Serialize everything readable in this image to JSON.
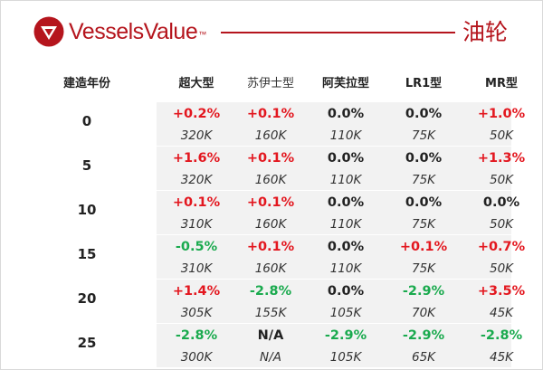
{
  "header": {
    "brand": "VesselsValue",
    "trademark": "™",
    "title": "油轮"
  },
  "table": {
    "age_header": "建造年份",
    "columns": [
      "超大型",
      "苏伊士型",
      "阿芙拉型",
      "LR1型",
      "MR型"
    ],
    "rows": [
      {
        "age": "0",
        "changes": [
          "+0.2%",
          "+0.1%",
          "0.0%",
          "0.0%",
          "+1.0%"
        ],
        "values": [
          "320K",
          "160K",
          "110K",
          "75K",
          "50K"
        ]
      },
      {
        "age": "5",
        "changes": [
          "+1.6%",
          "+0.1%",
          "0.0%",
          "0.0%",
          "+1.3%"
        ],
        "values": [
          "320K",
          "160K",
          "110K",
          "75K",
          "50K"
        ]
      },
      {
        "age": "10",
        "changes": [
          "+0.1%",
          "+0.1%",
          "0.0%",
          "0.0%",
          "0.0%"
        ],
        "values": [
          "310K",
          "160K",
          "110K",
          "75K",
          "50K"
        ]
      },
      {
        "age": "15",
        "changes": [
          "-0.5%",
          "+0.1%",
          "0.0%",
          "+0.1%",
          "+0.7%"
        ],
        "values": [
          "310K",
          "160K",
          "110K",
          "75K",
          "50K"
        ]
      },
      {
        "age": "20",
        "changes": [
          "+1.4%",
          "-2.8%",
          "0.0%",
          "-2.9%",
          "+3.5%"
        ],
        "values": [
          "305K",
          "155K",
          "105K",
          "70K",
          "45K"
        ]
      },
      {
        "age": "25",
        "changes": [
          "-2.8%",
          "N/A",
          "-2.9%",
          "-2.9%",
          "-2.8%"
        ],
        "values": [
          "300K",
          "N/A",
          "105K",
          "65K",
          "45K"
        ]
      }
    ]
  },
  "colors": {
    "brand_red": "#b5151d",
    "positive": "#e3171f",
    "negative": "#1aaa4e",
    "band": "#f2f2f2"
  }
}
